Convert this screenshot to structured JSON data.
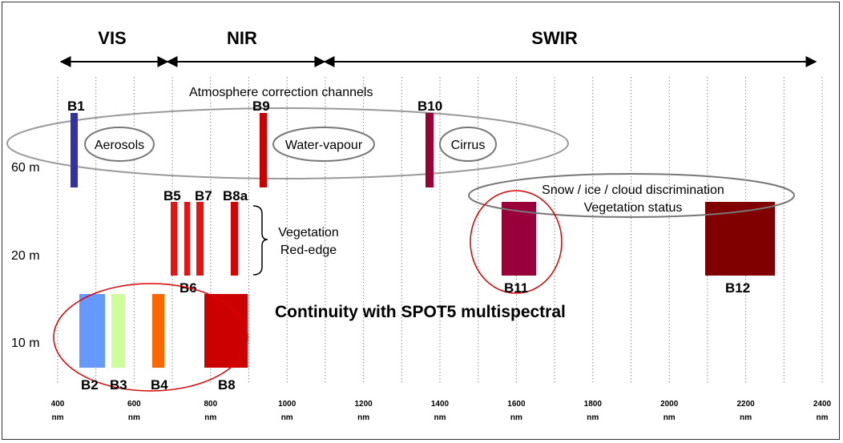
{
  "regions": [
    {
      "label": "VIS"
    },
    {
      "label": "NIR"
    },
    {
      "label": "SWIR"
    }
  ],
  "atmosphere_title": "Atmosphere correction channels",
  "groups": {
    "aerosols": "Aerosols",
    "water_vapour": "Water-vapour",
    "cirrus": "Cirrus",
    "snow_line1": "Snow / ice / cloud discrimination",
    "snow_line2": "Vegetation status",
    "veg_line1": "Vegetation",
    "veg_line2": "Red-edge",
    "continuity": "Continuity with SPOT5 multispectral"
  },
  "resolutions": [
    "60 m",
    "20 m",
    "10 m"
  ],
  "axis_ticks": [
    {
      "value": "400",
      "unit": "nm"
    },
    {
      "value": "600",
      "unit": "nm"
    },
    {
      "value": "800",
      "unit": "nm"
    },
    {
      "value": "1000",
      "unit": "nm"
    },
    {
      "value": "1200",
      "unit": "nm"
    },
    {
      "value": "1400",
      "unit": "nm"
    },
    {
      "value": "1600",
      "unit": "nm"
    },
    {
      "value": "1800",
      "unit": "nm"
    },
    {
      "value": "2000",
      "unit": "nm"
    },
    {
      "value": "2200",
      "unit": "nm"
    },
    {
      "value": "2400",
      "unit": "nm"
    }
  ],
  "bands": [
    {
      "label": "B1",
      "color": "#333399"
    },
    {
      "label": "B9",
      "color": "#cc0000"
    },
    {
      "label": "B10",
      "color": "#990033"
    },
    {
      "label": "B5",
      "color": "#ee1111"
    },
    {
      "label": "B6",
      "color": "#ee1111"
    },
    {
      "label": "B7",
      "color": "#ee1111"
    },
    {
      "label": "B8a",
      "color": "#dd0000"
    },
    {
      "label": "B11",
      "color": "#99003a"
    },
    {
      "label": "B12",
      "color": "#800000"
    },
    {
      "label": "B2",
      "color": "#6699ff"
    },
    {
      "label": "B3",
      "color": "#ccff99"
    },
    {
      "label": "B4",
      "color": "#ff6600"
    },
    {
      "label": "B8",
      "color": "#cc0000"
    }
  ]
}
